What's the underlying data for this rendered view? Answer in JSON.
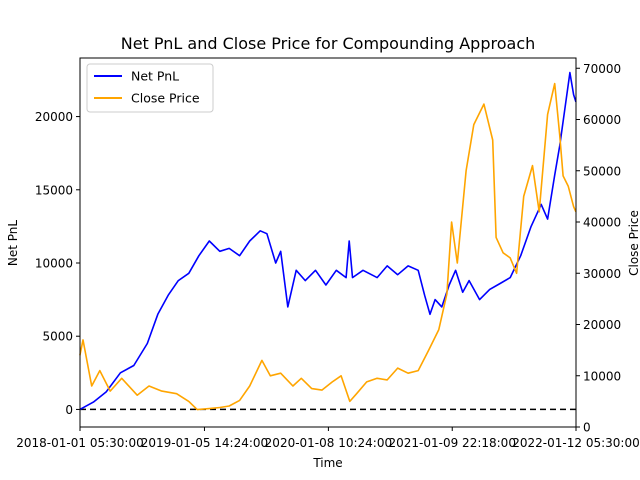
{
  "chart_data": {
    "type": "line",
    "title": "Net PnL and Close Price for Compounding Approach",
    "xlabel": "Time",
    "ylabel_left": "Net PnL",
    "ylabel_right": "Close Price",
    "x_ticks": [
      "2018-01-01 05:30:00",
      "2019-01-05 14:24:00",
      "2020-01-08 10:24:00",
      "2021-01-09 22:18:00",
      "2022-01-12 05:30:00"
    ],
    "x_range": [
      "2018-01-01 05:30:00",
      "2022-01-12 05:30:00"
    ],
    "y_left_ticks": [
      0,
      5000,
      10000,
      15000,
      20000
    ],
    "y_left_range": [
      -1200,
      24000
    ],
    "y_right_ticks": [
      0,
      10000,
      20000,
      30000,
      40000,
      50000,
      60000,
      70000
    ],
    "y_right_range": [
      0,
      72000
    ],
    "legend_position": "upper-left",
    "horizontal_lines": [
      {
        "axis": "left",
        "y": 0,
        "style": "dashed",
        "color": "#000000"
      }
    ],
    "series": [
      {
        "name": "Net PnL",
        "axis": "left",
        "color": "#0000ff",
        "points": [
          [
            "2018-01-01",
            0
          ],
          [
            "2018-02-10",
            500
          ],
          [
            "2018-03-20",
            1200
          ],
          [
            "2018-05-01",
            2500
          ],
          [
            "2018-06-10",
            3000
          ],
          [
            "2018-07-20",
            4500
          ],
          [
            "2018-08-20",
            6500
          ],
          [
            "2018-09-20",
            7800
          ],
          [
            "2018-10-20",
            8800
          ],
          [
            "2018-11-20",
            9300
          ],
          [
            "2018-12-20",
            10500
          ],
          [
            "2019-01-20",
            11500
          ],
          [
            "2019-02-20",
            10800
          ],
          [
            "2019-03-20",
            11000
          ],
          [
            "2019-04-20",
            10500
          ],
          [
            "2019-05-20",
            11500
          ],
          [
            "2019-06-20",
            12200
          ],
          [
            "2019-07-10",
            12000
          ],
          [
            "2019-08-05",
            10000
          ],
          [
            "2019-08-20",
            10800
          ],
          [
            "2019-09-10",
            7000
          ],
          [
            "2019-10-05",
            9500
          ],
          [
            "2019-11-01",
            8800
          ],
          [
            "2019-12-01",
            9500
          ],
          [
            "2020-01-01",
            8500
          ],
          [
            "2020-02-01",
            9500
          ],
          [
            "2020-03-01",
            9000
          ],
          [
            "2020-03-10",
            11500
          ],
          [
            "2020-03-20",
            9000
          ],
          [
            "2020-04-20",
            9500
          ],
          [
            "2020-06-01",
            9000
          ],
          [
            "2020-07-01",
            9800
          ],
          [
            "2020-08-01",
            9200
          ],
          [
            "2020-09-01",
            9800
          ],
          [
            "2020-10-01",
            9500
          ],
          [
            "2020-10-20",
            7800
          ],
          [
            "2020-11-05",
            6500
          ],
          [
            "2020-11-20",
            7500
          ],
          [
            "2020-12-10",
            7000
          ],
          [
            "2021-01-01",
            8500
          ],
          [
            "2021-01-20",
            9500
          ],
          [
            "2021-02-10",
            8000
          ],
          [
            "2021-03-01",
            8800
          ],
          [
            "2021-04-01",
            7500
          ],
          [
            "2021-05-01",
            8200
          ],
          [
            "2021-06-01",
            8600
          ],
          [
            "2021-07-01",
            9000
          ],
          [
            "2021-08-01",
            10500
          ],
          [
            "2021-09-01",
            12500
          ],
          [
            "2021-10-01",
            14000
          ],
          [
            "2021-10-20",
            13000
          ],
          [
            "2021-11-10",
            16000
          ],
          [
            "2021-11-25",
            18000
          ],
          [
            "2021-12-10",
            20500
          ],
          [
            "2021-12-25",
            23000
          ],
          [
            "2022-01-05",
            21500
          ],
          [
            "2022-01-12",
            21000
          ]
        ]
      },
      {
        "name": "Close Price",
        "axis": "right",
        "color": "#ffa500",
        "points": [
          [
            "2018-01-01",
            14000
          ],
          [
            "2018-01-10",
            17000
          ],
          [
            "2018-02-05",
            8000
          ],
          [
            "2018-03-01",
            11000
          ],
          [
            "2018-04-01",
            7000
          ],
          [
            "2018-05-05",
            9500
          ],
          [
            "2018-06-20",
            6200
          ],
          [
            "2018-07-25",
            8000
          ],
          [
            "2018-09-01",
            7000
          ],
          [
            "2018-10-15",
            6500
          ],
          [
            "2018-11-20",
            5000
          ],
          [
            "2018-12-15",
            3400
          ],
          [
            "2019-01-20",
            3600
          ],
          [
            "2019-02-20",
            3800
          ],
          [
            "2019-03-20",
            4100
          ],
          [
            "2019-04-20",
            5200
          ],
          [
            "2019-05-20",
            8000
          ],
          [
            "2019-06-25",
            13000
          ],
          [
            "2019-07-20",
            10000
          ],
          [
            "2019-08-20",
            10500
          ],
          [
            "2019-09-25",
            8000
          ],
          [
            "2019-10-20",
            9500
          ],
          [
            "2019-11-20",
            7500
          ],
          [
            "2019-12-20",
            7200
          ],
          [
            "2020-01-20",
            8800
          ],
          [
            "2020-02-15",
            10000
          ],
          [
            "2020-03-12",
            5000
          ],
          [
            "2020-04-01",
            6500
          ],
          [
            "2020-05-01",
            8800
          ],
          [
            "2020-06-01",
            9500
          ],
          [
            "2020-07-01",
            9200
          ],
          [
            "2020-08-01",
            11500
          ],
          [
            "2020-09-01",
            10500
          ],
          [
            "2020-10-01",
            11000
          ],
          [
            "2020-11-01",
            15000
          ],
          [
            "2020-12-01",
            19000
          ],
          [
            "2020-12-25",
            26000
          ],
          [
            "2021-01-08",
            40000
          ],
          [
            "2021-01-25",
            32000
          ],
          [
            "2021-02-20",
            50000
          ],
          [
            "2021-03-15",
            59000
          ],
          [
            "2021-04-14",
            63000
          ],
          [
            "2021-05-10",
            56000
          ],
          [
            "2021-05-20",
            37000
          ],
          [
            "2021-06-10",
            34000
          ],
          [
            "2021-07-01",
            33000
          ],
          [
            "2021-07-20",
            30000
          ],
          [
            "2021-08-10",
            45000
          ],
          [
            "2021-09-05",
            51000
          ],
          [
            "2021-09-25",
            42000
          ],
          [
            "2021-10-20",
            61000
          ],
          [
            "2021-11-10",
            67000
          ],
          [
            "2021-11-25",
            57000
          ],
          [
            "2021-12-05",
            49000
          ],
          [
            "2021-12-20",
            47000
          ],
          [
            "2022-01-05",
            43000
          ],
          [
            "2022-01-12",
            42000
          ]
        ]
      }
    ]
  }
}
